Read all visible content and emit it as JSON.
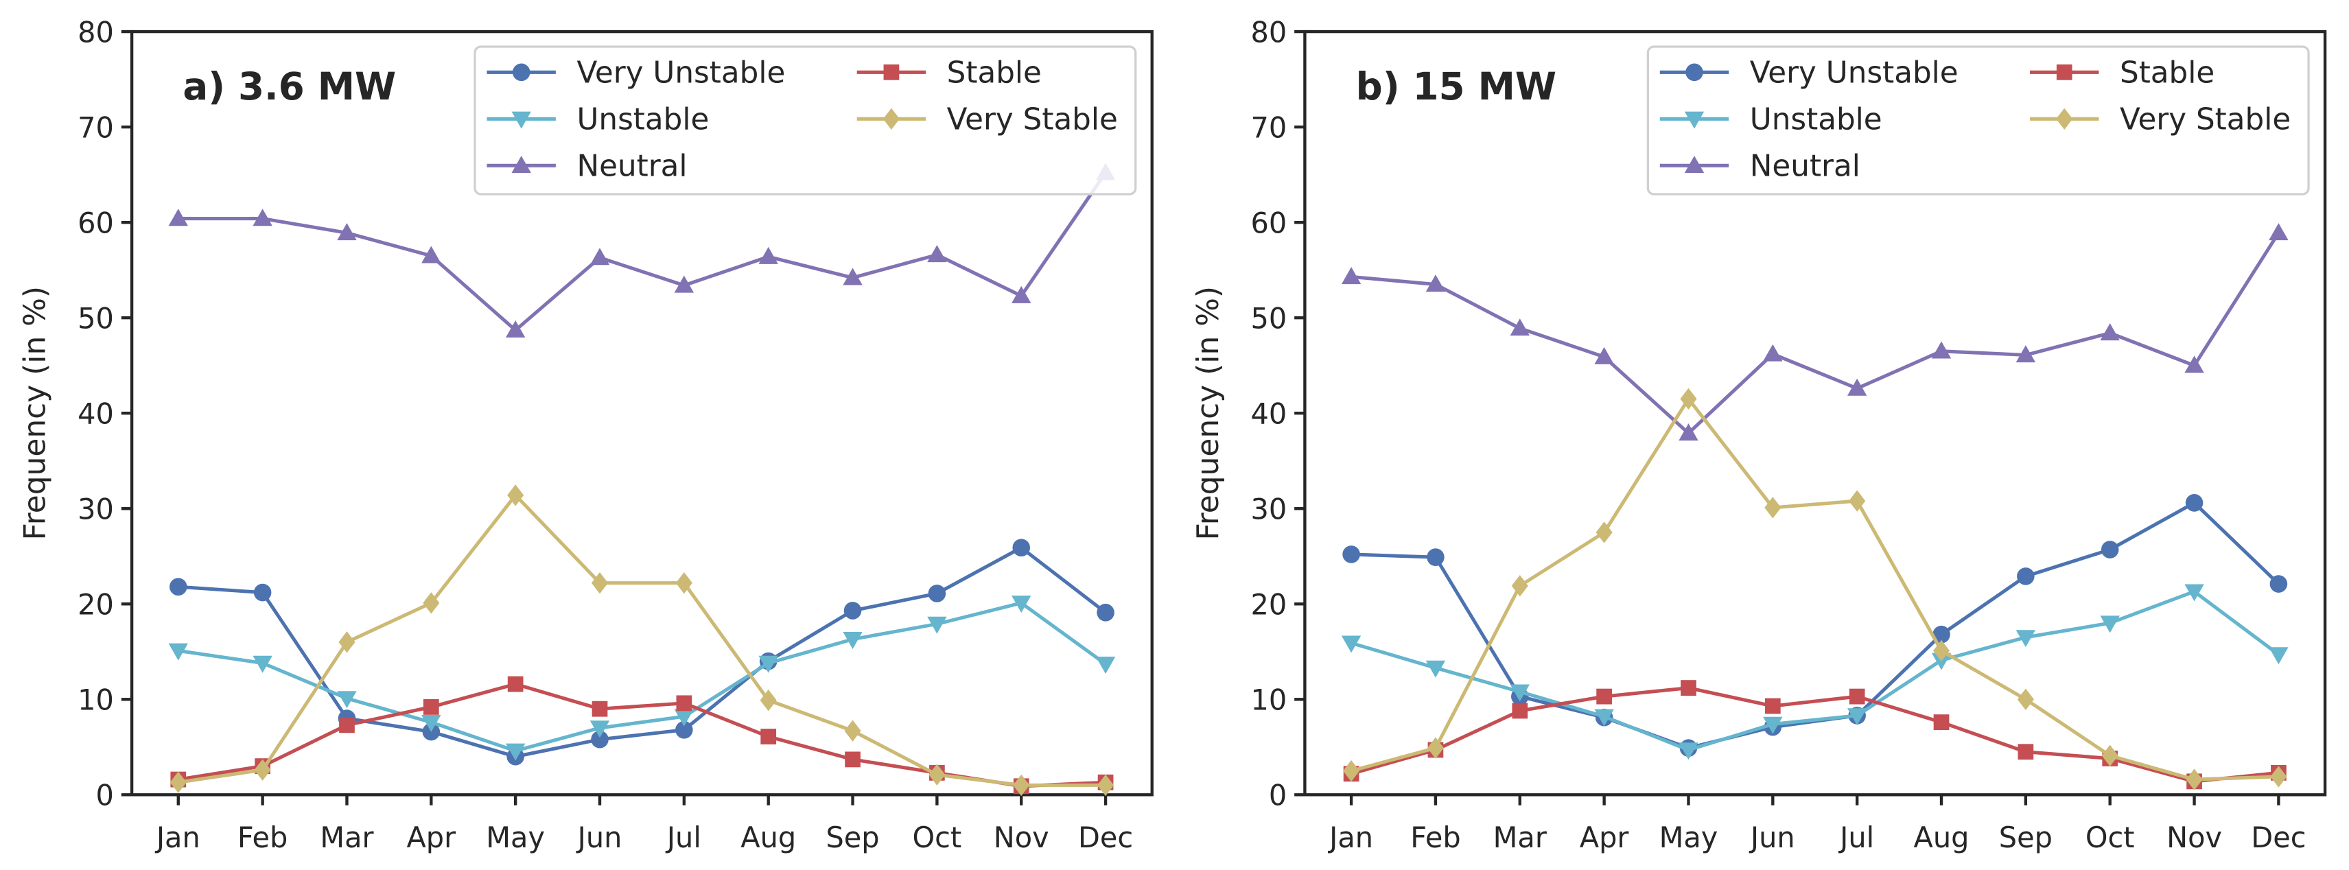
{
  "chart_data": [
    {
      "type": "line",
      "title": "a) 3.6 MW",
      "xlabel": "",
      "ylabel": "Frequency (in %)",
      "ylim": [
        0,
        80
      ],
      "yticks": [
        "0",
        "10",
        "20",
        "30",
        "40",
        "50",
        "60",
        "70",
        "80"
      ],
      "categories": [
        "Jan",
        "Feb",
        "Mar",
        "Apr",
        "May",
        "Jun",
        "Jul",
        "Aug",
        "Sep",
        "Oct",
        "Nov",
        "Dec"
      ],
      "legend_position": "top-right",
      "grid": false,
      "series": [
        {
          "name": "Very Unstable",
          "color": "#4c72b0",
          "marker": "circle",
          "values": [
            21.8,
            21.2,
            8.0,
            6.6,
            4.0,
            5.8,
            6.8,
            14.0,
            19.3,
            21.1,
            25.9,
            19.1
          ]
        },
        {
          "name": "Unstable",
          "color": "#64b5cd",
          "marker": "triangle-down",
          "values": [
            15.1,
            13.8,
            10.1,
            7.6,
            4.6,
            7.0,
            8.2,
            13.8,
            16.3,
            17.9,
            20.1,
            13.7
          ]
        },
        {
          "name": "Neutral",
          "color": "#8172b3",
          "marker": "triangle-up",
          "values": [
            60.4,
            60.4,
            58.9,
            56.5,
            48.7,
            56.3,
            53.4,
            56.4,
            54.2,
            56.6,
            52.3,
            65.2
          ]
        },
        {
          "name": "Stable",
          "color": "#c44e52",
          "marker": "square",
          "values": [
            1.6,
            3.0,
            7.3,
            9.2,
            11.6,
            9.0,
            9.6,
            6.1,
            3.7,
            2.3,
            0.9,
            1.3
          ]
        },
        {
          "name": "Very Stable",
          "color": "#ccb974",
          "marker": "diamond",
          "values": [
            1.3,
            2.6,
            16.0,
            20.1,
            31.4,
            22.2,
            22.2,
            9.9,
            6.7,
            2.1,
            1.0,
            1.0
          ]
        }
      ]
    },
    {
      "type": "line",
      "title": "b) 15 MW",
      "xlabel": "",
      "ylabel": "Frequency (in %)",
      "ylim": [
        0,
        80
      ],
      "yticks": [
        "0",
        "10",
        "20",
        "30",
        "40",
        "50",
        "60",
        "70",
        "80"
      ],
      "categories": [
        "Jan",
        "Feb",
        "Mar",
        "Apr",
        "May",
        "Jun",
        "Jul",
        "Aug",
        "Sep",
        "Oct",
        "Nov",
        "Dec"
      ],
      "legend_position": "top-right",
      "grid": false,
      "series": [
        {
          "name": "Very Unstable",
          "color": "#4c72b0",
          "marker": "circle",
          "values": [
            25.2,
            24.9,
            10.3,
            8.1,
            4.9,
            7.1,
            8.3,
            16.8,
            22.9,
            25.7,
            30.6,
            22.1
          ]
        },
        {
          "name": "Unstable",
          "color": "#64b5cd",
          "marker": "triangle-down",
          "values": [
            15.9,
            13.3,
            10.8,
            8.2,
            4.7,
            7.4,
            8.3,
            14.1,
            16.5,
            18.0,
            21.3,
            14.7
          ]
        },
        {
          "name": "Neutral",
          "color": "#8172b3",
          "marker": "triangle-up",
          "values": [
            54.3,
            53.5,
            48.9,
            45.9,
            37.9,
            46.2,
            42.6,
            46.5,
            46.1,
            48.4,
            45.0,
            58.9
          ]
        },
        {
          "name": "Stable",
          "color": "#c44e52",
          "marker": "square",
          "values": [
            2.2,
            4.7,
            8.8,
            10.3,
            11.2,
            9.3,
            10.3,
            7.6,
            4.5,
            3.8,
            1.4,
            2.3
          ]
        },
        {
          "name": "Very Stable",
          "color": "#ccb974",
          "marker": "diamond",
          "values": [
            2.5,
            4.9,
            21.9,
            27.5,
            41.5,
            30.1,
            30.8,
            15.1,
            10.0,
            4.1,
            1.6,
            1.9
          ]
        }
      ]
    }
  ]
}
